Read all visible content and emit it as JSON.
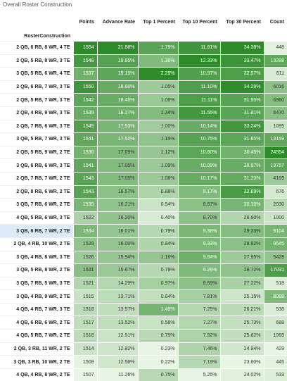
{
  "title": "Overall Roster Construction",
  "chart_data": {
    "type": "table",
    "row_header": "RosterConstruction",
    "columns": [
      "Points",
      "Advance Rate",
      "Top 1 Percent",
      "Top 10 Percent",
      "Top 30 Percent",
      "Count"
    ],
    "rows": [
      {
        "label": "2 QB, 6 RB, 8 WR, 4 TE",
        "values": [
          "1554",
          "21.88%",
          "1.79%",
          "11.61%",
          "34.38%",
          "448"
        ]
      },
      {
        "label": "2 QB, 5 RB, 8 WR, 3 TE",
        "values": [
          "1548",
          "19.65%",
          "1.36%",
          "12.33%",
          "33.47%",
          "13288"
        ]
      },
      {
        "label": "3 QB, 5 RB, 6 WR, 4 TE",
        "values": [
          "1537",
          "19.15%",
          "2.29%",
          "10.97%",
          "32.57%",
          "611"
        ]
      },
      {
        "label": "2 QB, 6 RB, 7 WR, 3 TE",
        "values": [
          "1550",
          "18.60%",
          "1.05%",
          "11.10%",
          "34.29%",
          "6016"
        ]
      },
      {
        "label": "2 QB, 5 RB, 7 WR, 3 TE",
        "values": [
          "1542",
          "18.45%",
          "1.08%",
          "11.11%",
          "31.95%",
          "6960"
        ]
      },
      {
        "label": "2 QB, 4 RB, 9 WR, 3 TE",
        "values": [
          "1539",
          "18.27%",
          "1.34%",
          "11.55%",
          "31.81%",
          "6470"
        ]
      },
      {
        "label": "2 QB, 7 RB, 6 WR, 3 TE",
        "values": [
          "1545",
          "17.53%",
          "1.00%",
          "10.14%",
          "33.24%",
          "1095"
        ]
      },
      {
        "label": "3 QB, 5 RB, 7 WR, 3 TE",
        "values": [
          "1541",
          "17.52%",
          "1.19%",
          "10.75%",
          "31.65%",
          "13159"
        ]
      },
      {
        "label": "2 QB, 5 RB, 9 WR, 2 TE",
        "values": [
          "1536",
          "17.09%",
          "1.12%",
          "10.60%",
          "30.45%",
          "24554"
        ]
      },
      {
        "label": "3 QB, 6 RB, 6 WR, 3 TE",
        "values": [
          "1541",
          "17.05%",
          "1.09%",
          "10.09%",
          "30.97%",
          "13757"
        ]
      },
      {
        "label": "2 QB, 7 RB, 7 WR, 2 TE",
        "values": [
          "1543",
          "17.05%",
          "1.08%",
          "10.17%",
          "31.23%",
          "4169"
        ]
      },
      {
        "label": "2 QB, 8 RB, 6 WR, 2 TE",
        "values": [
          "1543",
          "16.57%",
          "0.88%",
          "9.17%",
          "32.69%",
          "676"
        ]
      },
      {
        "label": "3 QB, 7 RB, 6 WR, 2 TE",
        "values": [
          "1535",
          "16.21%",
          "0.54%",
          "8.67%",
          "30.10%",
          "2030"
        ]
      },
      {
        "label": "4 QB, 5 RB, 6 WR, 3 TE",
        "values": [
          "1522",
          "16.20%",
          "0.40%",
          "8.70%",
          "26.80%",
          "1000"
        ]
      },
      {
        "label": "3 QB, 6 RB, 7 WR, 2 TE",
        "values": [
          "1534",
          "16.01%",
          "0.79%",
          "9.38%",
          "29.33%",
          "9104"
        ]
      },
      {
        "label": "2 QB, 4 RB, 10 WR, 2 TE",
        "values": [
          "1529",
          "16.00%",
          "0.84%",
          "9.33%",
          "28.92%",
          "9545"
        ]
      },
      {
        "label": "3 QB, 4 RB, 8 WR, 3 TE",
        "values": [
          "1526",
          "15.94%",
          "1.16%",
          "9.84%",
          "27.95%",
          "5428"
        ]
      },
      {
        "label": "3 QB, 5 RB, 8 WR, 2 TE",
        "values": [
          "1531",
          "15.67%",
          "0.79%",
          "9.26%",
          "28.72%",
          "17031"
        ]
      },
      {
        "label": "3 QB, 7 RB, 5 WR, 3 TE",
        "values": [
          "1521",
          "14.29%",
          "0.97%",
          "8.69%",
          "27.22%",
          "518"
        ]
      },
      {
        "label": "3 QB, 4 RB, 9 WR, 2 TE",
        "values": [
          "1515",
          "13.71%",
          "0.64%",
          "7.81%",
          "25.15%",
          "8088"
        ]
      },
      {
        "label": "4 QB, 4 RB, 7 WR, 3 TE",
        "values": [
          "1518",
          "13.57%",
          "1.49%",
          "7.25%",
          "26.21%",
          "538"
        ]
      },
      {
        "label": "4 QB, 6 RB, 6 WR, 2 TE",
        "values": [
          "1517",
          "13.52%",
          "0.58%",
          "7.27%",
          "25.73%",
          "688"
        ]
      },
      {
        "label": "4 QB, 5 RB, 7 WR, 2 TE",
        "values": [
          "1518",
          "12.91%",
          "0.75%",
          "7.52%",
          "25.82%",
          "1069"
        ]
      },
      {
        "label": "2 QB, 3 RB, 11 WR, 2 TE",
        "values": [
          "1514",
          "12.82%",
          "0.23%",
          "7.46%",
          "24.94%",
          "429"
        ]
      },
      {
        "label": "3 QB, 3 RB, 10 WR, 2 TE",
        "values": [
          "1508",
          "12.58%",
          "0.22%",
          "7.19%",
          "23.60%",
          "445"
        ]
      },
      {
        "label": "4 QB, 4 RB, 8 WR, 2 TE",
        "values": [
          "1507",
          "11.26%",
          "0.75%",
          "5.25%",
          "24.02%",
          "533"
        ]
      }
    ],
    "highlighted_row_label": "3 QB, 6 RB, 7 WR, 2 TE",
    "color_scale": {
      "low": "#e8f4e4",
      "high": "#2e8b2a"
    }
  }
}
